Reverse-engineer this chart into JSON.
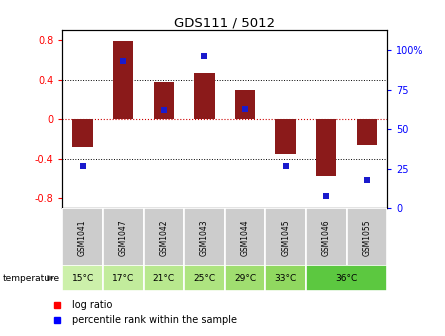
{
  "title": "GDS111 / 5012",
  "samples": [
    "GSM1041",
    "GSM1047",
    "GSM1042",
    "GSM1043",
    "GSM1044",
    "GSM1045",
    "GSM1046",
    "GSM1055"
  ],
  "temp_labels_per_sample": [
    "15°C",
    "17°C",
    "21°C",
    "25°C",
    "29°C",
    "33°C",
    "36°C",
    "36°C"
  ],
  "log_ratios": [
    -0.28,
    0.79,
    0.38,
    0.47,
    0.3,
    -0.35,
    -0.57,
    -0.26
  ],
  "percentile_ranks": [
    27,
    93,
    62,
    96,
    63,
    27,
    8,
    18
  ],
  "ylim_left": [
    -0.9,
    0.9
  ],
  "ylim_right": [
    0,
    112.5
  ],
  "yticks_left": [
    -0.8,
    -0.4,
    0.0,
    0.4,
    0.8
  ],
  "yticks_right": [
    0,
    25,
    50,
    75,
    100
  ],
  "ytick_labels_right": [
    "0",
    "25",
    "50",
    "75",
    "100%"
  ],
  "bar_color": "#8b1a1a",
  "dot_color": "#1a1acd",
  "grid_color": "#000000",
  "zero_line_color": "#cc0000",
  "sample_bg_color": "#cccccc",
  "temp_colors_map": {
    "15°C": "#ccf0aa",
    "17°C": "#c2ec9c",
    "21°C": "#b8e88e",
    "25°C": "#aee480",
    "29°C": "#a0de70",
    "33°C": "#90d860",
    "36°C": "#5cc840"
  },
  "legend_red_label": "log ratio",
  "legend_blue_label": "percentile rank within the sample",
  "temp_row_label": "temperature"
}
